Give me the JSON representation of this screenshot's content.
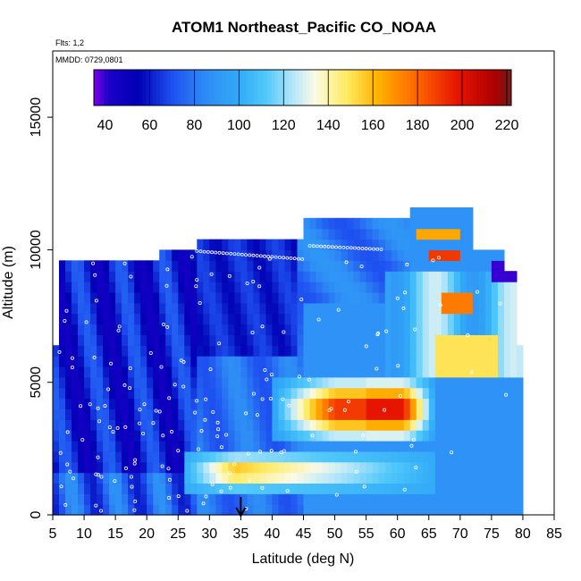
{
  "chart_data": {
    "type": "heatmap",
    "title": "ATOM1 Northeast_Pacific CO_NOAA",
    "note_flights": "Flts: 1,2",
    "note_dates": "MMDD: 0729,0801",
    "xlabel": "Latitude (deg N)",
    "ylabel": "Altitude (m)",
    "xlim": [
      5,
      85
    ],
    "ylim": [
      0,
      17500
    ],
    "x_ticks": [
      5,
      10,
      15,
      20,
      25,
      30,
      35,
      40,
      45,
      50,
      55,
      60,
      65,
      70,
      75,
      80,
      85
    ],
    "y_ticks": [
      0,
      5000,
      10000,
      15000
    ],
    "colorbar": {
      "range": [
        35,
        222
      ],
      "ticks": [
        40,
        60,
        80,
        100,
        120,
        140,
        160,
        180,
        200,
        220
      ],
      "colors": [
        {
          "v": 35,
          "c": "#7a00e6"
        },
        {
          "v": 42,
          "c": "#1a00c8"
        },
        {
          "v": 55,
          "c": "#0000b4"
        },
        {
          "v": 70,
          "c": "#1e50f0"
        },
        {
          "v": 85,
          "c": "#2e8cf5"
        },
        {
          "v": 100,
          "c": "#32aaf8"
        },
        {
          "v": 112,
          "c": "#50c8fa"
        },
        {
          "v": 124,
          "c": "#b4e6fa"
        },
        {
          "v": 134,
          "c": "#fafae6"
        },
        {
          "v": 148,
          "c": "#ffeb64"
        },
        {
          "v": 162,
          "c": "#ffb400"
        },
        {
          "v": 180,
          "c": "#ff6400"
        },
        {
          "v": 198,
          "c": "#e61400"
        },
        {
          "v": 215,
          "c": "#aa0000"
        },
        {
          "v": 222,
          "c": "#6e1e1e"
        }
      ]
    },
    "grid": false,
    "marker": {
      "type": "arrow",
      "x": 35,
      "label": ""
    },
    "approx_co_ppb_by_region": [
      {
        "lat_range": [
          5,
          28
        ],
        "alt_range": [
          0,
          9500
        ],
        "co": 62
      },
      {
        "lat_range": [
          28,
          44
        ],
        "alt_range": [
          6000,
          10000
        ],
        "co": 72
      },
      {
        "lat_range": [
          47,
          63
        ],
        "alt_range": [
          3000,
          5000
        ],
        "co": 195
      },
      {
        "lat_range": [
          26,
          50
        ],
        "alt_range": [
          1200,
          2200
        ],
        "co": 165
      },
      {
        "lat_range": [
          66,
          76
        ],
        "alt_range": [
          5200,
          7000
        ],
        "co": 150
      }
    ]
  }
}
